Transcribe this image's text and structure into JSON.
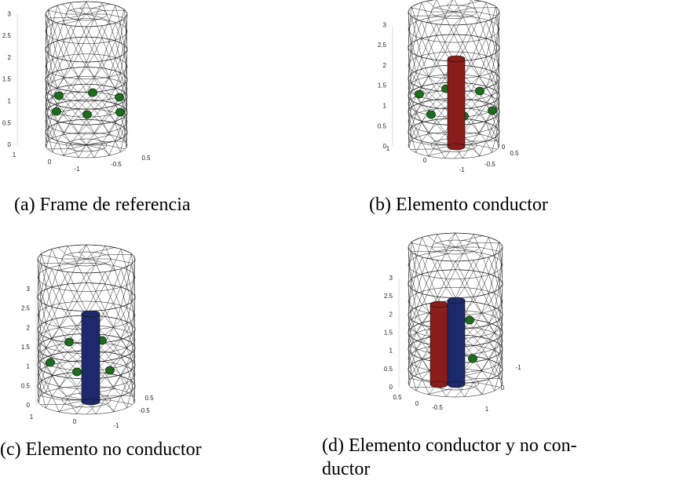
{
  "panels": [
    {
      "caption_lines": [
        "(a) Frame de referencia"
      ],
      "z_ticks": [
        "0",
        "0.5",
        "1",
        "1.5",
        "2",
        "2.5",
        "3"
      ],
      "floor_ticks": [
        "1",
        "0",
        "-1",
        "-0.5",
        "0.5"
      ]
    },
    {
      "caption_lines": [
        "(b) Elemento conductor"
      ],
      "z_ticks": [
        "0",
        "0.5",
        "1",
        "1.5",
        "2",
        "2.5",
        "3"
      ],
      "floor_ticks": [
        "1",
        "0",
        "-1",
        "-0.5",
        "0",
        "0.5"
      ]
    },
    {
      "caption_lines": [
        "(c) Elemento no conductor"
      ],
      "z_ticks": [
        "0",
        "0.5",
        "1",
        "1.5",
        "2",
        "2.5",
        "3"
      ],
      "floor_ticks": [
        "1",
        "0",
        "-1",
        "-0.5",
        "0.5"
      ]
    },
    {
      "caption_lines": [
        "(d) Elemento conductor y no con-",
        "ductor"
      ],
      "z_ticks": [
        "0",
        "0.5",
        "1",
        "1.5",
        "2",
        "2.5",
        "3"
      ],
      "floor_ticks": [
        "0.5",
        "0",
        "-0.5",
        "1",
        "0",
        "-1"
      ]
    }
  ]
}
